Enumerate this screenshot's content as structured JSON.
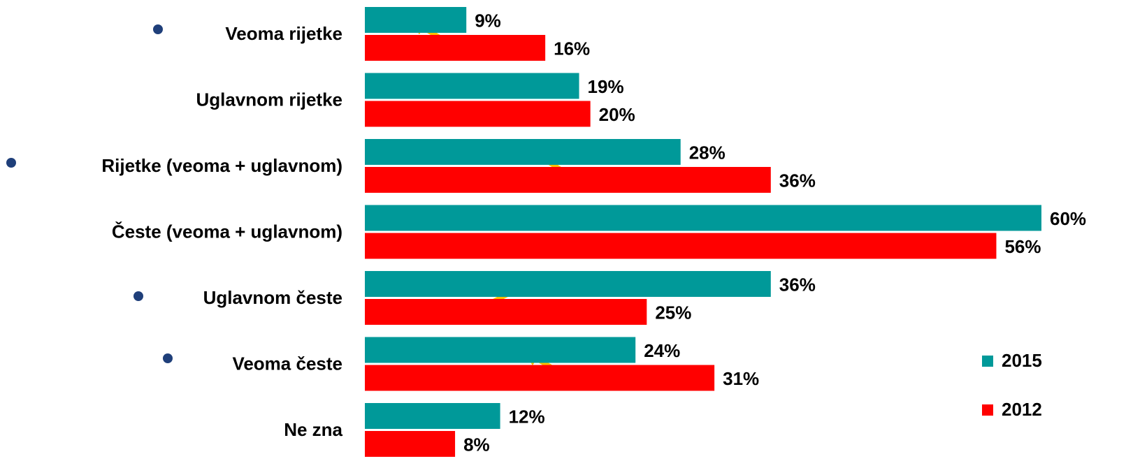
{
  "chart_data": {
    "type": "hbar",
    "categories": [
      "Veoma rijetke",
      "Uglavnom rijetke",
      "Rijetke (veoma + uglavnom)",
      "Česte (veoma + uglavnom)",
      "Uglavnom česte",
      "Veoma česte",
      "Ne zna"
    ],
    "series": [
      {
        "name": "2015",
        "color": "#009999",
        "values": [
          9,
          19,
          28,
          60,
          36,
          24,
          12
        ],
        "value_labels": [
          "9%",
          "19%",
          "28%",
          "60%",
          "36%",
          "24%",
          "12%"
        ]
      },
      {
        "name": "2012",
        "color": "#ff0000",
        "values": [
          16,
          20,
          36,
          56,
          25,
          31,
          8
        ],
        "value_labels": [
          "16%",
          "20%",
          "36%",
          "56%",
          "25%",
          "31%",
          "8%"
        ]
      }
    ],
    "xlim": [
      0,
      60
    ],
    "legend": "lower right"
  }
}
